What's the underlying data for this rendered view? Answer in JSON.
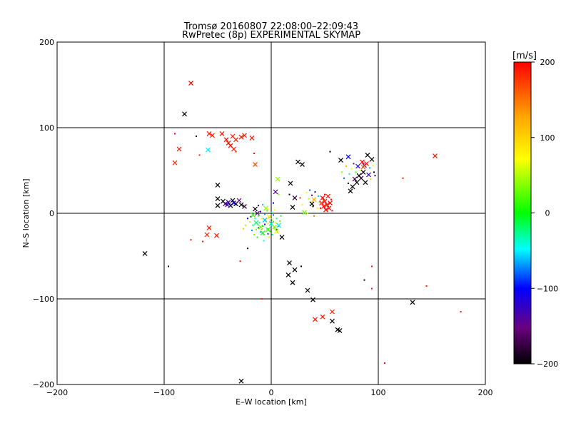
{
  "chart_data": {
    "type": "scatter",
    "title": "Tromsø 20160807 22:08:00–22:09:43",
    "subtitle": "RwPretec (8p) EXPERIMENTAL SKYMAP",
    "xlabel": "E–W location [km]",
    "ylabel": "N–S location [km]",
    "xlim": [
      -200,
      200
    ],
    "ylim": [
      -200,
      200
    ],
    "xticks": [
      -200,
      -100,
      0,
      100,
      200
    ],
    "yticks": [
      -200,
      -100,
      0,
      100,
      200
    ],
    "grid": true,
    "colorbar": {
      "label": "[m/s]",
      "range": [
        -200,
        200
      ],
      "ticks": [
        200,
        100,
        0,
        -100,
        -200
      ],
      "colormap": [
        "#000000",
        "#6a0080",
        "#0000ff",
        "#00ffff",
        "#00ff00",
        "#ffff00",
        "#ffa500",
        "#ff0000"
      ]
    },
    "points": [
      {
        "x": -75,
        "y": 152,
        "v": 200,
        "m": "x"
      },
      {
        "x": -81,
        "y": 116,
        "v": -200,
        "m": "x"
      },
      {
        "x": -58,
        "y": 93,
        "v": 190,
        "m": "x"
      },
      {
        "x": -55,
        "y": 91,
        "v": 185,
        "m": "x"
      },
      {
        "x": -46,
        "y": 93,
        "v": 190,
        "m": "x"
      },
      {
        "x": -42,
        "y": 86,
        "v": 195,
        "m": "x"
      },
      {
        "x": -40,
        "y": 82,
        "v": 190,
        "m": "x"
      },
      {
        "x": -36,
        "y": 90,
        "v": 185,
        "m": "x"
      },
      {
        "x": -33,
        "y": 86,
        "v": 190,
        "m": "x"
      },
      {
        "x": -38,
        "y": 79,
        "v": 195,
        "m": "x"
      },
      {
        "x": -35,
        "y": 75,
        "v": 190,
        "m": "x"
      },
      {
        "x": -28,
        "y": 89,
        "v": 190,
        "m": "x"
      },
      {
        "x": -25,
        "y": 91,
        "v": 185,
        "m": "x"
      },
      {
        "x": -18,
        "y": 88,
        "v": 190,
        "m": "x"
      },
      {
        "x": -15,
        "y": 57,
        "v": 170,
        "m": "x"
      },
      {
        "x": -59,
        "y": 74,
        "v": -50,
        "m": "x"
      },
      {
        "x": -86,
        "y": 75,
        "v": 190,
        "m": "x"
      },
      {
        "x": -90,
        "y": 59,
        "v": 180,
        "m": "x"
      },
      {
        "x": -90,
        "y": 93,
        "v": 200,
        "m": "."
      },
      {
        "x": -70,
        "y": 90,
        "v": -200,
        "m": "."
      },
      {
        "x": -67,
        "y": 68,
        "v": 180,
        "m": "."
      },
      {
        "x": -33,
        "y": 72,
        "v": 190,
        "m": "."
      },
      {
        "x": -16,
        "y": 70,
        "v": 190,
        "m": "."
      },
      {
        "x": -50,
        "y": 33,
        "v": -200,
        "m": "x"
      },
      {
        "x": -50,
        "y": 17,
        "v": -200,
        "m": "x"
      },
      {
        "x": -50,
        "y": 9,
        "v": -200,
        "m": "x"
      },
      {
        "x": -45,
        "y": 14,
        "v": -200,
        "m": "x"
      },
      {
        "x": -43,
        "y": 11,
        "v": -160,
        "m": "x"
      },
      {
        "x": -40,
        "y": 13,
        "v": -130,
        "m": "x"
      },
      {
        "x": -38,
        "y": 9,
        "v": -200,
        "m": "x"
      },
      {
        "x": -36,
        "y": 15,
        "v": -200,
        "m": "x"
      },
      {
        "x": -33,
        "y": 11,
        "v": -200,
        "m": "x"
      },
      {
        "x": -30,
        "y": 15,
        "v": -150,
        "m": "x"
      },
      {
        "x": -28,
        "y": 10,
        "v": -200,
        "m": "x"
      },
      {
        "x": -25,
        "y": 8,
        "v": -180,
        "m": "x"
      },
      {
        "x": -41,
        "y": 10,
        "v": -120,
        "m": "x"
      },
      {
        "x": -35,
        "y": 12,
        "v": -110,
        "m": "x"
      },
      {
        "x": -15,
        "y": 5,
        "v": -200,
        "m": "x"
      },
      {
        "x": -13,
        "y": 0,
        "v": -150,
        "m": "x"
      },
      {
        "x": -19,
        "y": -4,
        "v": -200,
        "m": "."
      },
      {
        "x": -58,
        "y": -17,
        "v": 190,
        "m": "x"
      },
      {
        "x": -60,
        "y": -25,
        "v": 185,
        "m": "x"
      },
      {
        "x": -51,
        "y": -26,
        "v": 190,
        "m": "x"
      },
      {
        "x": -75,
        "y": -31,
        "v": 190,
        "m": "."
      },
      {
        "x": -64,
        "y": -33,
        "v": 190,
        "m": "."
      },
      {
        "x": -22,
        "y": -41,
        "v": -200,
        "m": "."
      },
      {
        "x": -12,
        "y": 9,
        "v": -170,
        "m": "."
      },
      {
        "x": -5,
        "y": 6,
        "v": 40,
        "m": "x"
      },
      {
        "x": 6,
        "y": 40,
        "v": 40,
        "m": "x"
      },
      {
        "x": 4,
        "y": 25,
        "v": -140,
        "m": "x"
      },
      {
        "x": 7,
        "y": 22,
        "v": 30,
        "m": "."
      },
      {
        "x": 2,
        "y": 12,
        "v": -100,
        "m": "."
      },
      {
        "x": -8,
        "y": 10,
        "v": -60,
        "m": "."
      },
      {
        "x": -3,
        "y": 5,
        "v": 80,
        "m": "."
      },
      {
        "x": -20,
        "y": -10,
        "v": 60,
        "m": "."
      },
      {
        "x": -17,
        "y": -14,
        "v": -20,
        "m": "."
      },
      {
        "x": -15,
        "y": -6,
        "v": -40,
        "m": "."
      },
      {
        "x": -14,
        "y": -19,
        "v": 30,
        "m": "."
      },
      {
        "x": -12,
        "y": -3,
        "v": 10,
        "m": "."
      },
      {
        "x": -11,
        "y": -11,
        "v": -30,
        "m": "."
      },
      {
        "x": -10,
        "y": -22,
        "v": -60,
        "m": "."
      },
      {
        "x": -9,
        "y": -6,
        "v": 70,
        "m": "."
      },
      {
        "x": -8,
        "y": -15,
        "v": -10,
        "m": "."
      },
      {
        "x": -7,
        "y": -25,
        "v": 50,
        "m": "."
      },
      {
        "x": -6,
        "y": -1,
        "v": -70,
        "m": "."
      },
      {
        "x": -5,
        "y": -9,
        "v": 20,
        "m": "."
      },
      {
        "x": -4,
        "y": -18,
        "v": -40,
        "m": "."
      },
      {
        "x": -3,
        "y": -12,
        "v": 90,
        "m": "."
      },
      {
        "x": -2,
        "y": -5,
        "v": -20,
        "m": "."
      },
      {
        "x": -1,
        "y": -21,
        "v": 10,
        "m": "."
      },
      {
        "x": 0,
        "y": -14,
        "v": -50,
        "m": "."
      },
      {
        "x": 1,
        "y": -8,
        "v": 40,
        "m": "."
      },
      {
        "x": 2,
        "y": -2,
        "v": -80,
        "m": "."
      },
      {
        "x": 3,
        "y": -17,
        "v": 0,
        "m": "."
      },
      {
        "x": 4,
        "y": -11,
        "v": 60,
        "m": "."
      },
      {
        "x": 5,
        "y": -6,
        "v": -30,
        "m": "."
      },
      {
        "x": 6,
        "y": -22,
        "v": 20,
        "m": "."
      },
      {
        "x": 7,
        "y": -15,
        "v": -60,
        "m": "."
      },
      {
        "x": 8,
        "y": -9,
        "v": 30,
        "m": "."
      },
      {
        "x": 9,
        "y": -3,
        "v": -10,
        "m": "."
      },
      {
        "x": -18,
        "y": -20,
        "v": -70,
        "m": "."
      },
      {
        "x": -16,
        "y": -25,
        "v": 40,
        "m": "."
      },
      {
        "x": -13,
        "y": -28,
        "v": 10,
        "m": "."
      },
      {
        "x": -7,
        "y": -32,
        "v": -40,
        "m": "."
      },
      {
        "x": -2,
        "y": -28,
        "v": 60,
        "m": "."
      },
      {
        "x": 1,
        "y": -25,
        "v": -20,
        "m": "."
      },
      {
        "x": -22,
        "y": -6,
        "v": -100,
        "m": "."
      },
      {
        "x": -24,
        "y": -14,
        "v": 50,
        "m": "."
      },
      {
        "x": -26,
        "y": -18,
        "v": 110,
        "m": "."
      },
      {
        "x": -10,
        "y": 2,
        "v": -120,
        "m": "."
      },
      {
        "x": -4,
        "y": 3,
        "v": 30,
        "m": "."
      },
      {
        "x": 0,
        "y": 1,
        "v": -40,
        "m": "."
      },
      {
        "x": 3,
        "y": 4,
        "v": 70,
        "m": "."
      },
      {
        "x": -12,
        "y": -17,
        "v": -90,
        "m": "."
      },
      {
        "x": -9,
        "y": -19,
        "v": 120,
        "m": "."
      },
      {
        "x": -6,
        "y": -13,
        "v": -120,
        "m": "."
      },
      {
        "x": -3,
        "y": -24,
        "v": -150,
        "m": "."
      },
      {
        "x": 2,
        "y": -10,
        "v": 140,
        "m": "."
      },
      {
        "x": 5,
        "y": -19,
        "v": -130,
        "m": "."
      },
      {
        "x": -14,
        "y": -11,
        "v": -20,
        "m": "x"
      },
      {
        "x": -10,
        "y": -16,
        "v": 30,
        "m": "x"
      },
      {
        "x": -6,
        "y": -8,
        "v": -60,
        "m": "x"
      },
      {
        "x": -3,
        "y": -19,
        "v": 10,
        "m": "x"
      },
      {
        "x": 0,
        "y": -12,
        "v": -30,
        "m": "x"
      },
      {
        "x": 3,
        "y": -16,
        "v": 40,
        "m": "x"
      },
      {
        "x": 5,
        "y": -21,
        "v": 60,
        "m": "x"
      },
      {
        "x": -8,
        "y": -23,
        "v": -10,
        "m": "x"
      },
      {
        "x": -2,
        "y": -4,
        "v": 80,
        "m": "x"
      },
      {
        "x": -17,
        "y": -2,
        "v": 10,
        "m": "x"
      },
      {
        "x": 7,
        "y": -14,
        "v": -50,
        "m": "x"
      },
      {
        "x": 10,
        "y": -28,
        "v": -200,
        "m": "x"
      },
      {
        "x": 18,
        "y": 35,
        "v": -200,
        "m": "x"
      },
      {
        "x": 22,
        "y": 18,
        "v": -180,
        "m": "x"
      },
      {
        "x": 17,
        "y": 22,
        "v": -200,
        "m": "."
      },
      {
        "x": 20,
        "y": 7,
        "v": -200,
        "m": "x"
      },
      {
        "x": 25,
        "y": 60,
        "v": -200,
        "m": "x"
      },
      {
        "x": 29,
        "y": 57,
        "v": -200,
        "m": "x"
      },
      {
        "x": 27,
        "y": 18,
        "v": 180,
        "m": "."
      },
      {
        "x": 29,
        "y": 10,
        "v": 80,
        "m": "."
      },
      {
        "x": 31,
        "y": 1,
        "v": 30,
        "m": "x"
      },
      {
        "x": 33,
        "y": 24,
        "v": 80,
        "m": "."
      },
      {
        "x": 35,
        "y": 17,
        "v": 50,
        "m": "."
      },
      {
        "x": 36,
        "y": 27,
        "v": -80,
        "m": "."
      },
      {
        "x": 37,
        "y": 13,
        "v": 100,
        "m": "."
      },
      {
        "x": 38,
        "y": 21,
        "v": -150,
        "m": "."
      },
      {
        "x": 39,
        "y": 8,
        "v": -200,
        "m": "."
      },
      {
        "x": 40,
        "y": 16,
        "v": 120,
        "m": "x"
      },
      {
        "x": 41,
        "y": 25,
        "v": -120,
        "m": "."
      },
      {
        "x": 43,
        "y": 6,
        "v": 70,
        "m": "."
      },
      {
        "x": 44,
        "y": 20,
        "v": -60,
        "m": "."
      },
      {
        "x": 45,
        "y": 13,
        "v": 30,
        "m": "."
      },
      {
        "x": 38,
        "y": 11,
        "v": -200,
        "m": "x"
      },
      {
        "x": 34,
        "y": 0,
        "v": 60,
        "m": "."
      },
      {
        "x": 40,
        "y": -3,
        "v": 150,
        "m": "."
      },
      {
        "x": 48,
        "y": 18,
        "v": 200,
        "m": "x"
      },
      {
        "x": 50,
        "y": 14,
        "v": 195,
        "m": "x"
      },
      {
        "x": 52,
        "y": 10,
        "v": 200,
        "m": "x"
      },
      {
        "x": 54,
        "y": 6,
        "v": 190,
        "m": "x"
      },
      {
        "x": 49,
        "y": 8,
        "v": 200,
        "m": "x"
      },
      {
        "x": 53,
        "y": 20,
        "v": 195,
        "m": "x"
      },
      {
        "x": 51,
        "y": 4,
        "v": 200,
        "m": "x"
      },
      {
        "x": 47,
        "y": 12,
        "v": 185,
        "m": "x"
      },
      {
        "x": 55,
        "y": 12,
        "v": 200,
        "m": "x"
      },
      {
        "x": 50,
        "y": 22,
        "v": 200,
        "m": "."
      },
      {
        "x": 56,
        "y": 16,
        "v": 200,
        "m": "."
      },
      {
        "x": 46,
        "y": 6,
        "v": 200,
        "m": "."
      },
      {
        "x": 57,
        "y": 3,
        "v": 200,
        "m": "."
      },
      {
        "x": 55,
        "y": 72,
        "v": -200,
        "m": "."
      },
      {
        "x": 65,
        "y": 62,
        "v": -200,
        "m": "x"
      },
      {
        "x": 72,
        "y": 66,
        "v": -100,
        "m": "x"
      },
      {
        "x": 66,
        "y": 48,
        "v": 40,
        "m": "."
      },
      {
        "x": 68,
        "y": 41,
        "v": -80,
        "m": "."
      },
      {
        "x": 70,
        "y": 55,
        "v": 120,
        "m": "."
      },
      {
        "x": 72,
        "y": 35,
        "v": -200,
        "m": "."
      },
      {
        "x": 73,
        "y": 46,
        "v": -40,
        "m": "."
      },
      {
        "x": 74,
        "y": 26,
        "v": -200,
        "m": "x"
      },
      {
        "x": 75,
        "y": 52,
        "v": 80,
        "m": "."
      },
      {
        "x": 76,
        "y": 31,
        "v": -200,
        "m": "x"
      },
      {
        "x": 77,
        "y": 58,
        "v": -150,
        "m": "."
      },
      {
        "x": 78,
        "y": 40,
        "v": -180,
        "m": "x"
      },
      {
        "x": 79,
        "y": 48,
        "v": 20,
        "m": "."
      },
      {
        "x": 80,
        "y": 36,
        "v": -200,
        "m": "x"
      },
      {
        "x": 81,
        "y": 55,
        "v": -120,
        "m": "x"
      },
      {
        "x": 82,
        "y": 44,
        "v": -200,
        "m": "x"
      },
      {
        "x": 83,
        "y": 50,
        "v": 60,
        "m": "."
      },
      {
        "x": 84,
        "y": 41,
        "v": -180,
        "m": "x"
      },
      {
        "x": 85,
        "y": 60,
        "v": 200,
        "m": "x"
      },
      {
        "x": 86,
        "y": 48,
        "v": -200,
        "m": "x"
      },
      {
        "x": 87,
        "y": 56,
        "v": -150,
        "m": "x"
      },
      {
        "x": 88,
        "y": 36,
        "v": -200,
        "m": "x"
      },
      {
        "x": 89,
        "y": 58,
        "v": 190,
        "m": "x"
      },
      {
        "x": 90,
        "y": 68,
        "v": -200,
        "m": "x"
      },
      {
        "x": 91,
        "y": 45,
        "v": -120,
        "m": "x"
      },
      {
        "x": 92,
        "y": 53,
        "v": -60,
        "m": "."
      },
      {
        "x": 93,
        "y": 40,
        "v": 100,
        "m": "."
      },
      {
        "x": 94,
        "y": 63,
        "v": -200,
        "m": "x"
      },
      {
        "x": 95,
        "y": 56,
        "v": 80,
        "m": "."
      },
      {
        "x": 96,
        "y": 48,
        "v": -200,
        "m": "."
      },
      {
        "x": 97,
        "y": 44,
        "v": -180,
        "m": "."
      },
      {
        "x": 86,
        "y": 54,
        "v": 160,
        "m": "x"
      },
      {
        "x": 123,
        "y": 41,
        "v": 190,
        "m": "."
      },
      {
        "x": 153,
        "y": 67,
        "v": 190,
        "m": "x"
      },
      {
        "x": 17,
        "y": -58,
        "v": -200,
        "m": "x"
      },
      {
        "x": 16,
        "y": -72,
        "v": -200,
        "m": "x"
      },
      {
        "x": 22,
        "y": -66,
        "v": -200,
        "m": "x"
      },
      {
        "x": 20,
        "y": -81,
        "v": -200,
        "m": "x"
      },
      {
        "x": 28,
        "y": -62,
        "v": -200,
        "m": "."
      },
      {
        "x": 34,
        "y": -90,
        "v": -200,
        "m": "x"
      },
      {
        "x": 39,
        "y": -101,
        "v": -200,
        "m": "x"
      },
      {
        "x": 41,
        "y": -124,
        "v": 190,
        "m": "x"
      },
      {
        "x": 48,
        "y": -121,
        "v": 190,
        "m": "x"
      },
      {
        "x": 57,
        "y": -115,
        "v": 185,
        "m": "x"
      },
      {
        "x": 57,
        "y": -126,
        "v": -200,
        "m": "x"
      },
      {
        "x": 62,
        "y": -136,
        "v": -200,
        "m": "x"
      },
      {
        "x": 64,
        "y": -137,
        "v": -200,
        "m": "x"
      },
      {
        "x": 87,
        "y": -78,
        "v": -200,
        "m": "."
      },
      {
        "x": 94,
        "y": -62,
        "v": 190,
        "m": "."
      },
      {
        "x": 94,
        "y": -88,
        "v": 190,
        "m": "."
      },
      {
        "x": 132,
        "y": -104,
        "v": -200,
        "m": "x"
      },
      {
        "x": 145,
        "y": -85,
        "v": 190,
        "m": "."
      },
      {
        "x": 177,
        "y": -115,
        "v": 190,
        "m": "."
      },
      {
        "x": 106,
        "y": -175,
        "v": 200,
        "m": "."
      },
      {
        "x": -118,
        "y": -47,
        "v": -200,
        "m": "x"
      },
      {
        "x": -96,
        "y": -62,
        "v": -200,
        "m": "."
      },
      {
        "x": -29,
        "y": -56,
        "v": 190,
        "m": "."
      },
      {
        "x": -9,
        "y": -100,
        "v": 190,
        "m": "."
      },
      {
        "x": -28,
        "y": -196,
        "v": -200,
        "m": "x"
      }
    ]
  }
}
